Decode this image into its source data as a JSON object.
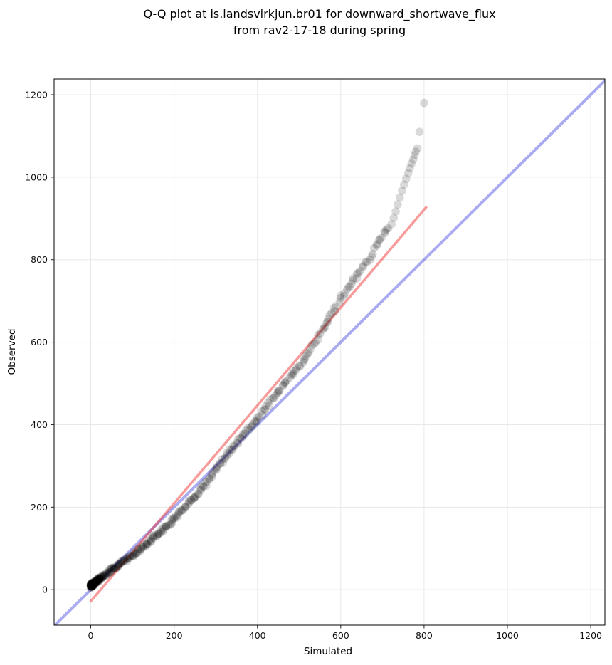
{
  "title": {
    "line1": "Q-Q plot at is.landsvirkjun.br01 for downward_shortwave_flux",
    "line2": "from rav2-17-18 during spring"
  },
  "chart_data": {
    "type": "scatter",
    "title": "Q-Q plot at is.landsvirkjun.br01 for downward_shortwave_flux\nfrom rav2-17-18 during spring",
    "xlabel": "Simulated",
    "ylabel": "Observed",
    "xlim": [
      -88,
      1234
    ],
    "ylim": [
      -86,
      1238
    ],
    "xticks": [
      0,
      200,
      400,
      600,
      800,
      1000,
      1200
    ],
    "yticks": [
      0,
      200,
      400,
      600,
      800,
      1000,
      1200
    ],
    "grid": true,
    "grid_color": "#e8e8e8",
    "spine_color": "#000000",
    "identity_line": {
      "label": "1:1 reference line",
      "from": [
        -88,
        -88
      ],
      "to": [
        1234,
        1234
      ],
      "color": "#2222dd",
      "opacity": 0.38,
      "width": 4
    },
    "fit_line": {
      "label": "regression fit line",
      "from": [
        0,
        -28
      ],
      "to": [
        805,
        927
      ],
      "color": "#ee2222",
      "opacity": 0.45,
      "width": 3.5
    },
    "scatter": {
      "label": "quantile points (simulated vs observed)",
      "color": "#000000",
      "opacity": 0.15,
      "radius_px": 5.8,
      "ridge": [
        [
          0,
          8
        ],
        [
          15,
          18
        ],
        [
          30,
          28
        ],
        [
          50,
          44
        ],
        [
          75,
          63
        ],
        [
          100,
          84
        ],
        [
          125,
          106
        ],
        [
          150,
          128
        ],
        [
          175,
          151
        ],
        [
          200,
          174
        ],
        [
          225,
          199
        ],
        [
          250,
          225
        ],
        [
          275,
          252
        ],
        [
          300,
          288
        ],
        [
          325,
          320
        ],
        [
          350,
          352
        ],
        [
          375,
          385
        ],
        [
          400,
          417
        ],
        [
          425,
          452
        ],
        [
          450,
          484
        ],
        [
          475,
          513
        ],
        [
          500,
          540
        ],
        [
          515,
          560
        ],
        [
          530,
          585
        ],
        [
          545,
          610
        ],
        [
          560,
          635
        ],
        [
          572,
          652
        ],
        [
          585,
          675
        ],
        [
          600,
          703
        ],
        [
          612,
          722
        ],
        [
          625,
          742
        ],
        [
          637,
          758
        ],
        [
          648,
          772
        ],
        [
          658,
          790
        ],
        [
          668,
          806
        ],
        [
          678,
          824
        ],
        [
          688,
          842
        ],
        [
          698,
          858
        ],
        [
          708,
          874
        ],
        [
          718,
          884
        ]
      ],
      "band_points": {
        "n": 300,
        "x_max": 718,
        "power": 1.7,
        "jitter_x": 3,
        "jitter_y": 4,
        "wiggle_amp": 4,
        "wiggle_period": 43,
        "seed": 7
      },
      "cluster": {
        "n": 70,
        "x_max": 22,
        "x_power": 2,
        "y_base": 9,
        "slope": 0.8,
        "spread": 9,
        "seed": 3
      },
      "outliers": [
        [
          722,
          886
        ],
        [
          727,
          901
        ],
        [
          732,
          917
        ],
        [
          737,
          934
        ],
        [
          742,
          951
        ],
        [
          747,
          967
        ],
        [
          752,
          982
        ],
        [
          757,
          996
        ],
        [
          762,
          1010
        ],
        [
          766,
          1022
        ],
        [
          770,
          1033
        ],
        [
          774,
          1043
        ],
        [
          777,
          1053
        ],
        [
          780,
          1062
        ],
        [
          784,
          1070
        ],
        [
          789,
          1110
        ],
        [
          800,
          1180
        ]
      ]
    }
  }
}
